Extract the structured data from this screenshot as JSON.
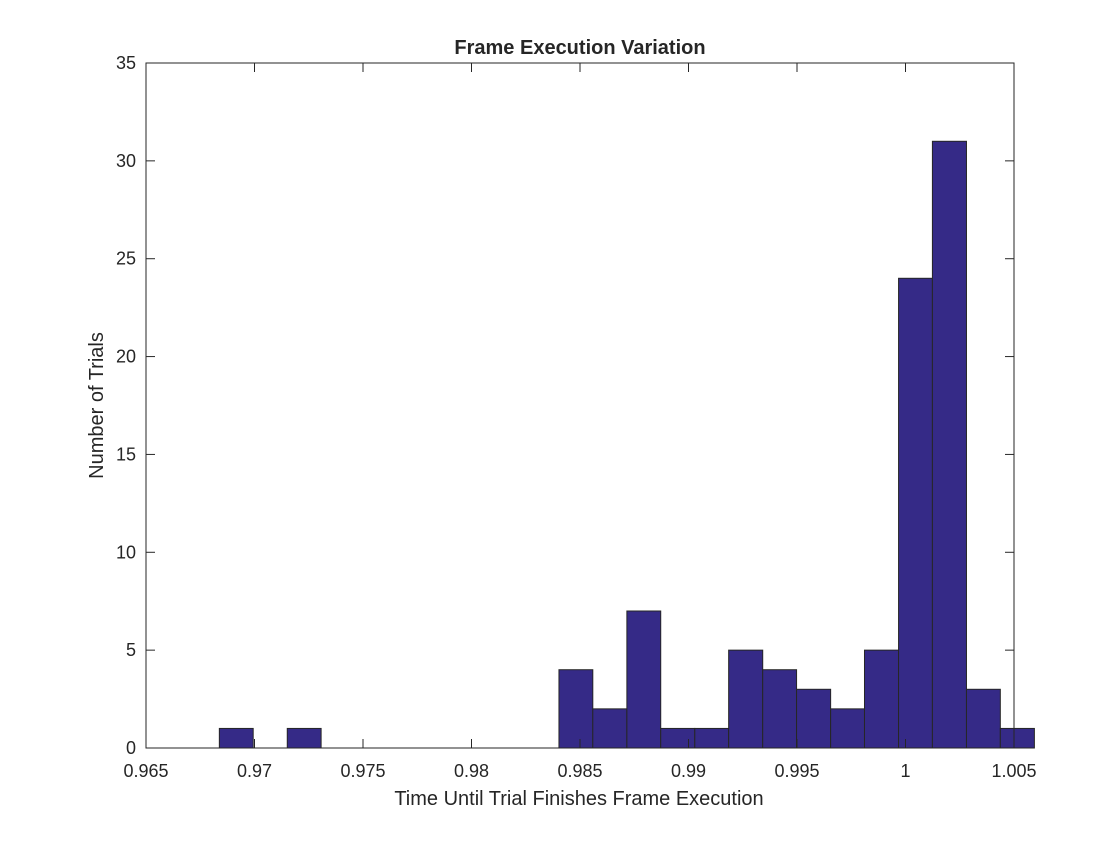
{
  "chart_data": {
    "type": "bar",
    "title": "Frame Execution Variation",
    "xlabel": "Time Until Trial Finishes Frame Execution",
    "ylabel": "Number of Trials",
    "xlim": [
      0.965,
      1.005
    ],
    "ylim": [
      0,
      35
    ],
    "xticks": [
      0.965,
      0.97,
      0.975,
      0.98,
      0.985,
      0.99,
      0.995,
      1,
      1.005
    ],
    "xtick_labels": [
      "0.965",
      "0.97",
      "0.975",
      "0.98",
      "0.985",
      "0.99",
      "0.995",
      "1",
      "1.005"
    ],
    "yticks": [
      0,
      5,
      10,
      15,
      20,
      25,
      30,
      35
    ],
    "ytick_labels": [
      "0",
      "5",
      "10",
      "15",
      "20",
      "25",
      "30",
      "35"
    ],
    "grid": false,
    "bar_color": "#352a87",
    "bar_edge_color": "#262626",
    "bins": [
      {
        "start": 0.96838,
        "end": 0.96994,
        "count": 1
      },
      {
        "start": 0.96994,
        "end": 0.97151,
        "count": 0
      },
      {
        "start": 0.97151,
        "end": 0.97307,
        "count": 1
      },
      {
        "start": 0.97307,
        "end": 0.97464,
        "count": 0
      },
      {
        "start": 0.97464,
        "end": 0.9762,
        "count": 0
      },
      {
        "start": 0.9762,
        "end": 0.97777,
        "count": 0
      },
      {
        "start": 0.97777,
        "end": 0.97933,
        "count": 0
      },
      {
        "start": 0.97933,
        "end": 0.9809,
        "count": 0
      },
      {
        "start": 0.9809,
        "end": 0.98246,
        "count": 0
      },
      {
        "start": 0.98246,
        "end": 0.98403,
        "count": 0
      },
      {
        "start": 0.98403,
        "end": 0.98559,
        "count": 4
      },
      {
        "start": 0.98559,
        "end": 0.98716,
        "count": 2
      },
      {
        "start": 0.98716,
        "end": 0.98872,
        "count": 7
      },
      {
        "start": 0.98872,
        "end": 0.99029,
        "count": 1
      },
      {
        "start": 0.99029,
        "end": 0.99185,
        "count": 1
      },
      {
        "start": 0.99185,
        "end": 0.99342,
        "count": 5
      },
      {
        "start": 0.99342,
        "end": 0.99498,
        "count": 4
      },
      {
        "start": 0.99498,
        "end": 0.99655,
        "count": 3
      },
      {
        "start": 0.99655,
        "end": 0.99811,
        "count": 2
      },
      {
        "start": 0.99811,
        "end": 0.99968,
        "count": 5
      },
      {
        "start": 0.99968,
        "end": 1.00124,
        "count": 24
      },
      {
        "start": 1.00124,
        "end": 1.00281,
        "count": 31
      },
      {
        "start": 1.00281,
        "end": 1.00437,
        "count": 3
      },
      {
        "start": 1.00437,
        "end": 1.00594,
        "count": 1
      }
    ]
  }
}
